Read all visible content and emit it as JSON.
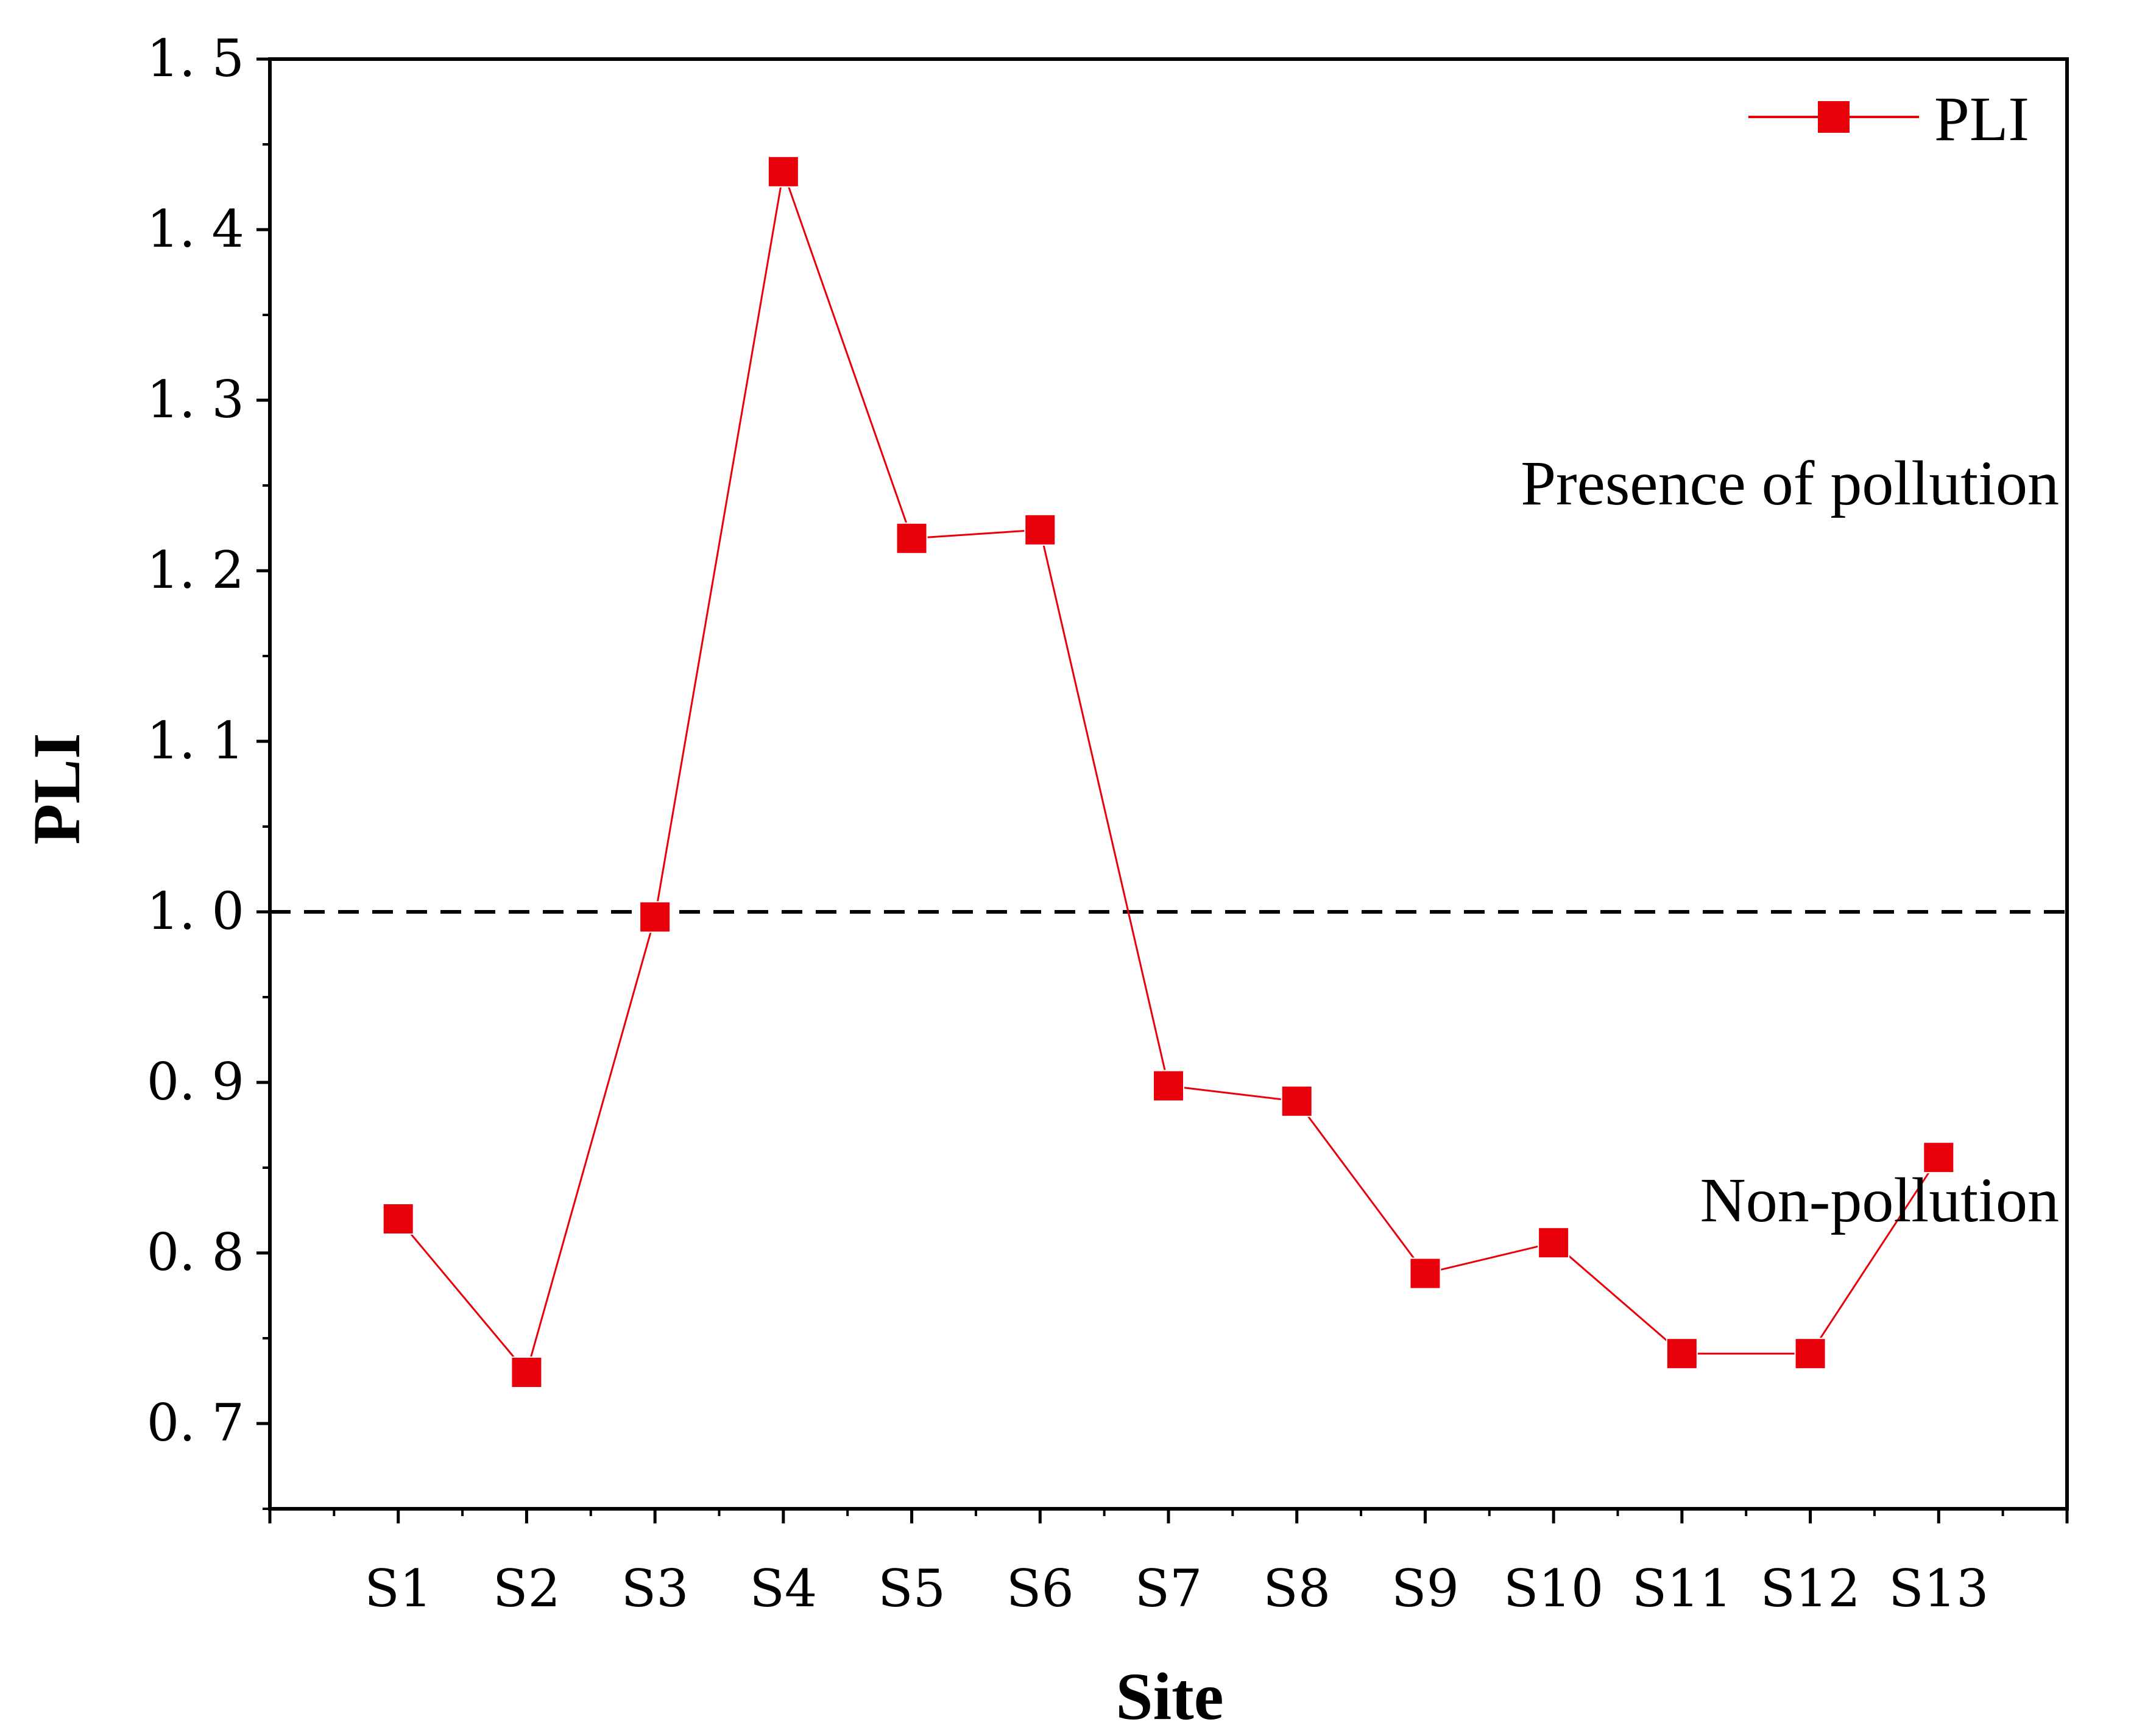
{
  "chart_data": {
    "type": "line",
    "title": "",
    "xlabel": "Site",
    "ylabel": "PLI",
    "categories": [
      "S1",
      "S2",
      "S3",
      "S4",
      "S5",
      "S6",
      "S7",
      "S8",
      "S9",
      "S10",
      "S11",
      "S12",
      "S13"
    ],
    "series": [
      {
        "name": "PLI",
        "color": "#e8000b",
        "marker": "square",
        "values": [
          0.82,
          0.73,
          0.997,
          1.434,
          1.219,
          1.224,
          0.898,
          0.889,
          0.788,
          0.806,
          0.741,
          0.741,
          0.856
        ]
      }
    ],
    "ylim": [
      0.65,
      1.5
    ],
    "yticks": [
      0.7,
      0.8,
      0.9,
      1.0,
      1.1,
      1.2,
      1.3,
      1.4,
      1.5
    ],
    "ytick_labels": [
      "0. 7",
      "0. 8",
      "0. 9",
      "1. 0",
      "1. 1",
      "1. 2",
      "1. 3",
      "1. 4",
      "1. 5"
    ],
    "reference_line": {
      "y": 1.0,
      "style": "dashed",
      "color": "#000000"
    },
    "annotations": {
      "upper": "Presence of pollution",
      "lower": "Non-pollution"
    },
    "legend": {
      "label": "PLI",
      "position": "top-right"
    },
    "grid": false
  }
}
